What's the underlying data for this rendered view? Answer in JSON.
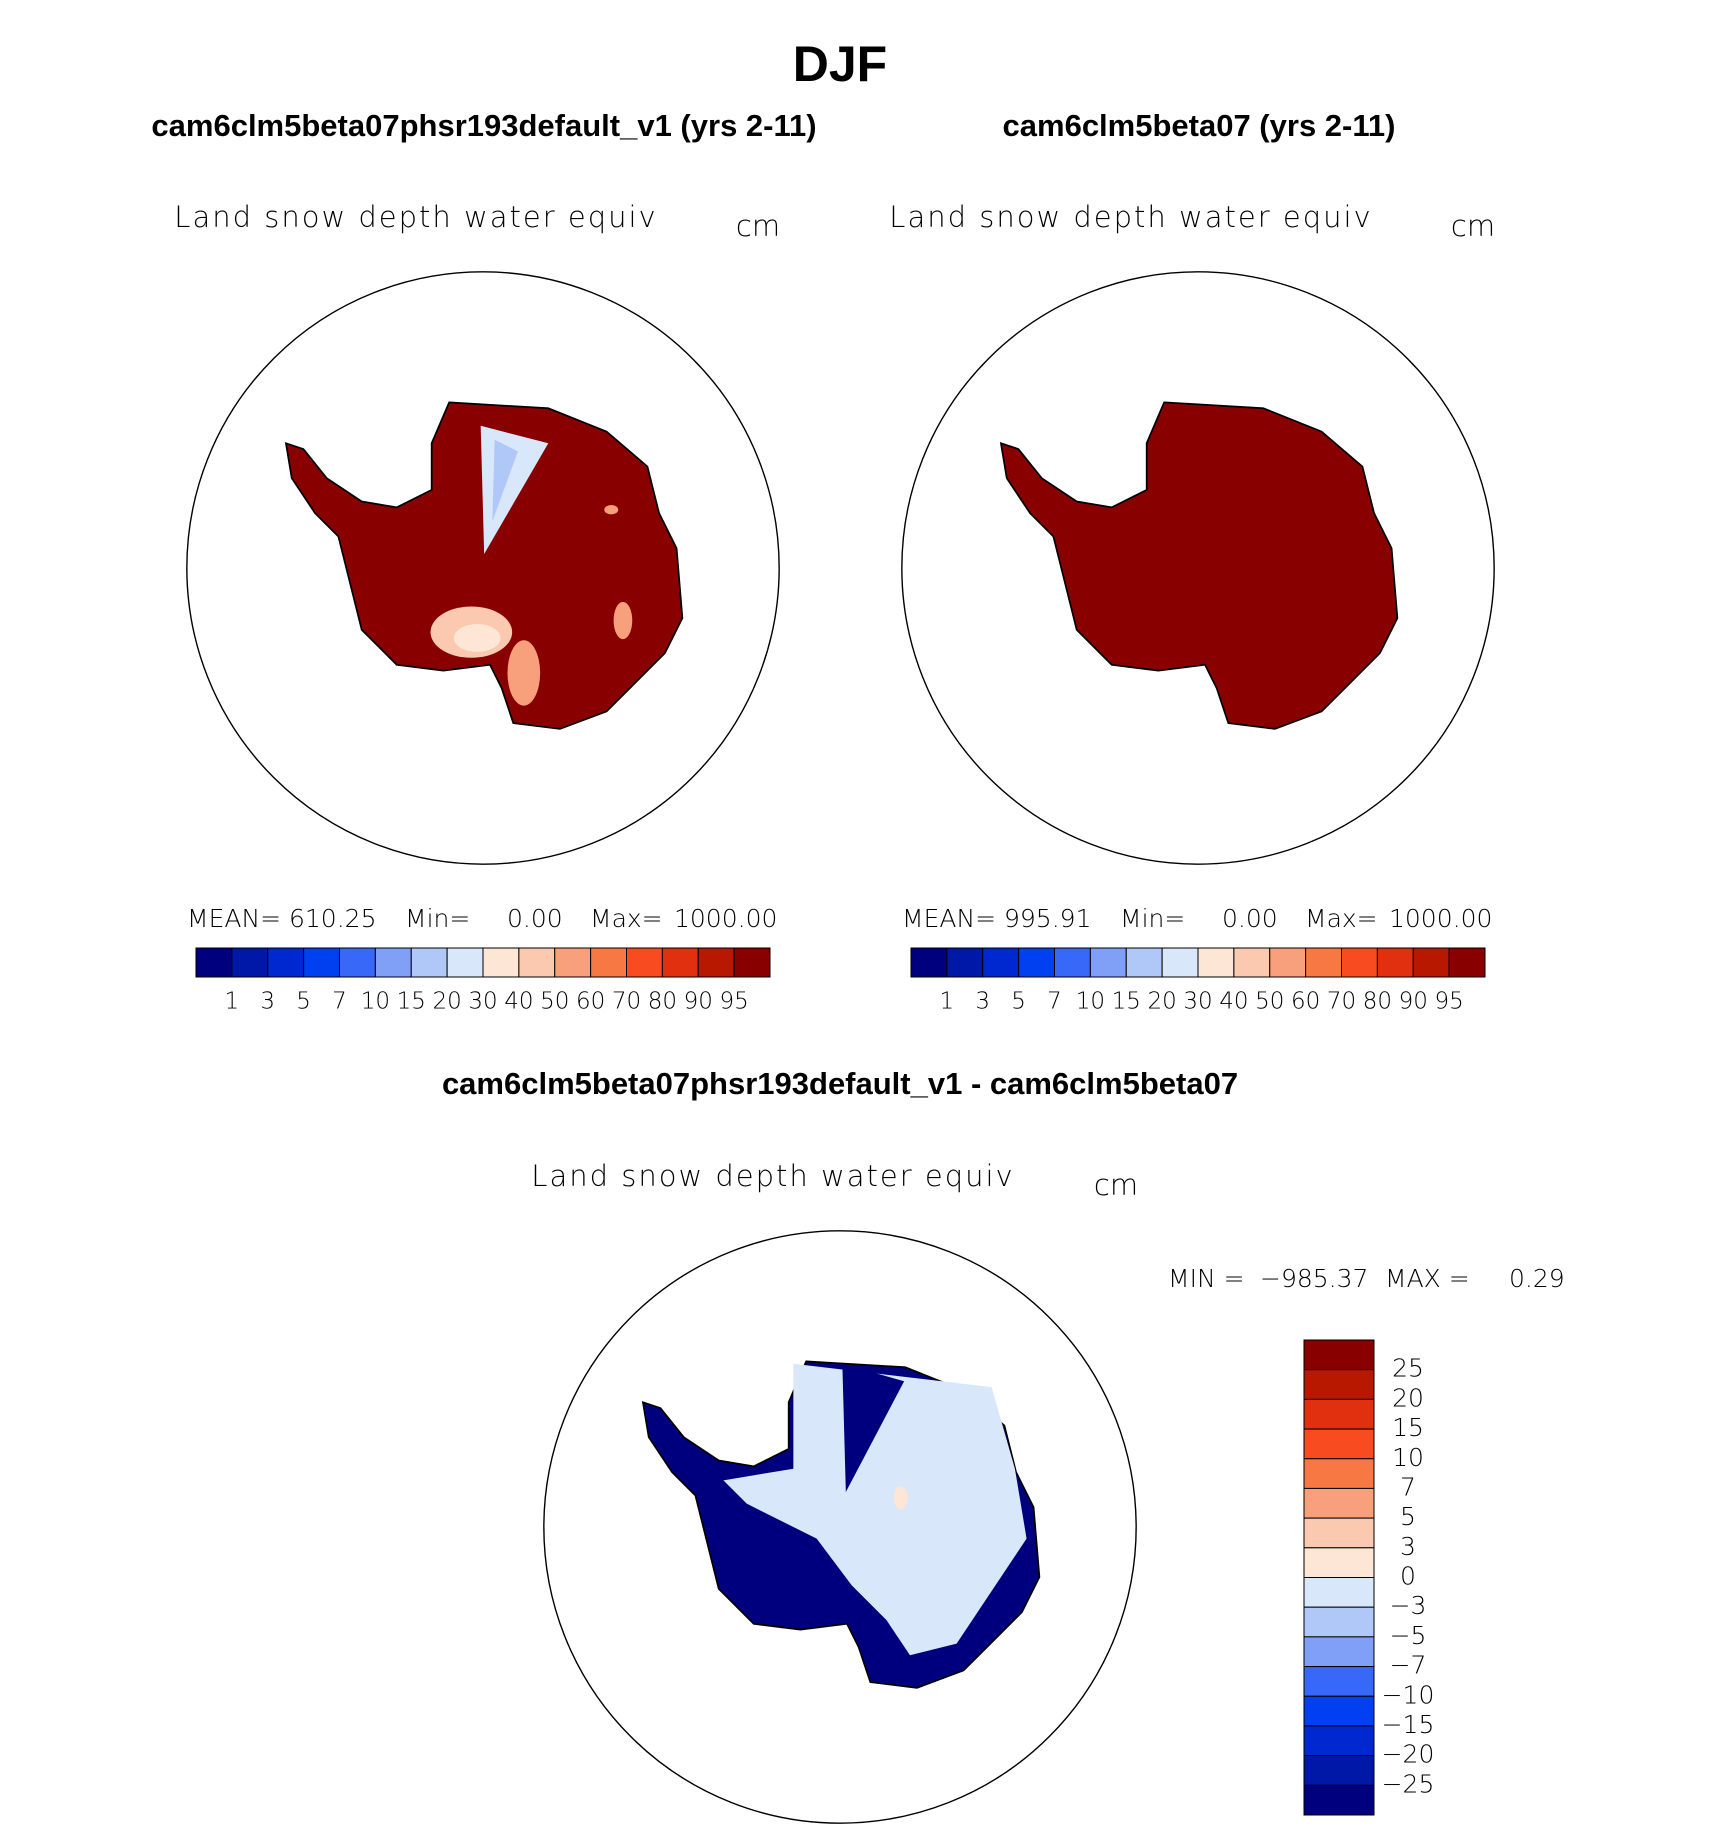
{
  "title": "DJF",
  "panels": [
    {
      "title": "cam6clm5beta07phsr193default_v1 (yrs 2-11)",
      "field": "Land snow depth water equiv",
      "units": "cm",
      "stats": {
        "mean_label": "MEAN=",
        "mean": "610.25",
        "min_label": "Min=",
        "min": "0.00",
        "max_label": "Max=",
        "max": "1000.00"
      }
    },
    {
      "title": "cam6clm5beta07 (yrs 2-11)",
      "field": "Land snow depth water equiv",
      "units": "cm",
      "stats": {
        "mean_label": "MEAN=",
        "mean": "995.91",
        "min_label": "Min=",
        "min": "0.00",
        "max_label": "Max=",
        "max": "1000.00"
      }
    }
  ],
  "colorbar": {
    "colors": [
      "#00007f",
      "#0018a8",
      "#0028d0",
      "#0040f0",
      "#3868f8",
      "#80a0f8",
      "#b0c8f8",
      "#d8e8fa",
      "#fde6d6",
      "#fbc8b0",
      "#f8a07c",
      "#f87844",
      "#f84c20",
      "#e03010",
      "#b81800",
      "#880000"
    ],
    "labels": [
      "1",
      "3",
      "5",
      "7",
      "10",
      "15",
      "20",
      "30",
      "40",
      "50",
      "60",
      "70",
      "80",
      "90",
      "95"
    ]
  },
  "difference": {
    "title": "cam6clm5beta07phsr193default_v1 - cam6clm5beta07",
    "field": "Land snow depth water equiv",
    "units": "cm",
    "stats": {
      "min_label": "MIN =",
      "min": "−985.37",
      "max_label": "MAX =",
      "max": "0.29"
    },
    "colorbar": {
      "colors": [
        "#880000",
        "#b81800",
        "#e03010",
        "#f84c20",
        "#f87844",
        "#f8a07c",
        "#fbc8b0",
        "#fde6d6",
        "#d8e8fa",
        "#b0c8f8",
        "#80a0f8",
        "#3868f8",
        "#0040f0",
        "#0028d0",
        "#0018a8",
        "#00007f"
      ],
      "labels": [
        "25",
        "20",
        "15",
        "10",
        "7",
        "5",
        "3",
        "0",
        "−3",
        "−5",
        "−7",
        "−10",
        "−15",
        "−20",
        "−25"
      ]
    }
  }
}
